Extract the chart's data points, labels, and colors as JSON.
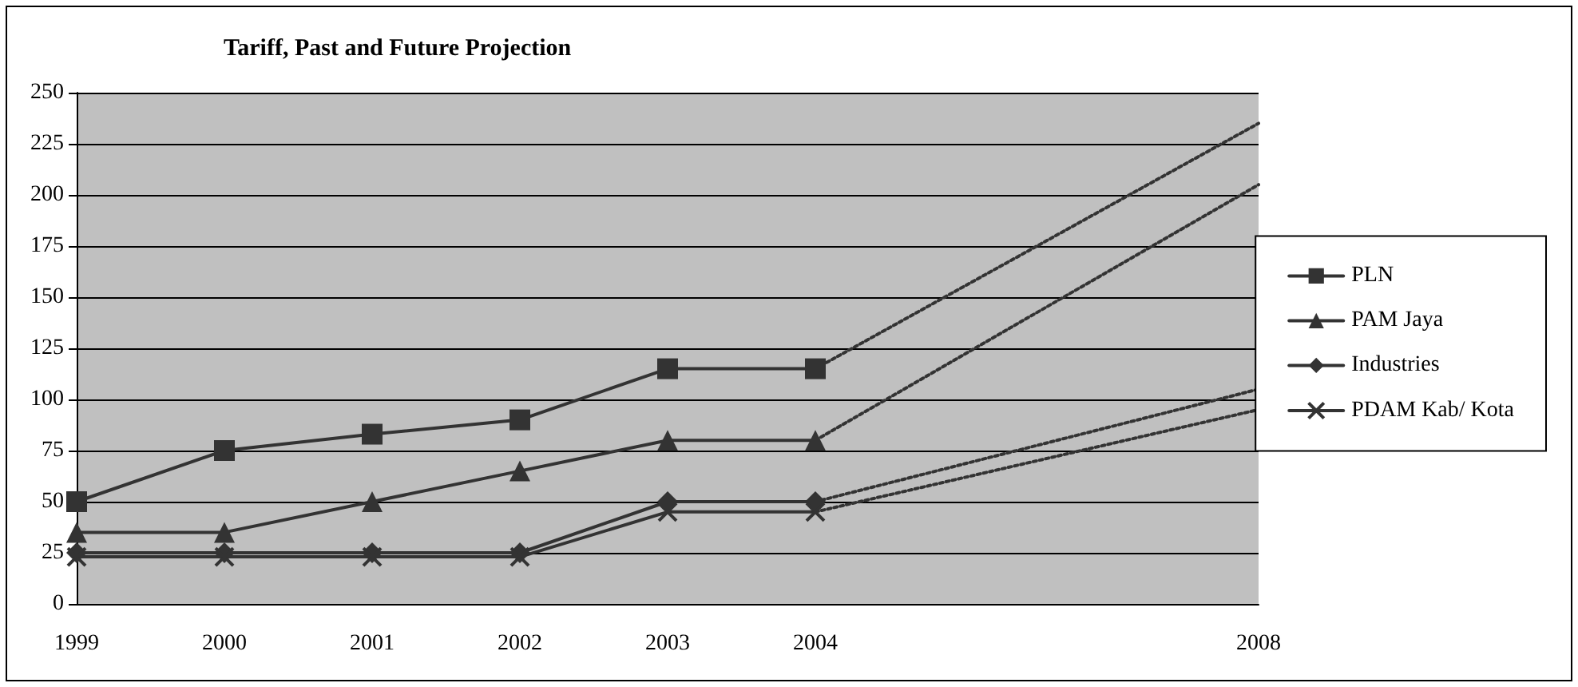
{
  "chart_data": {
    "type": "line",
    "title": "Tariff, Past and Future Projection",
    "categories": [
      "1999",
      "2000",
      "2001",
      "2002",
      "2003",
      "2004",
      null,
      null,
      "2008"
    ],
    "series": [
      {
        "name": "PLN",
        "color": "#333333",
        "marker": "square",
        "line_style": "solid",
        "values": [
          50,
          75,
          83,
          90,
          115,
          115,
          null,
          null,
          null
        ]
      },
      {
        "name": "PAM Jaya",
        "color": "#333333",
        "marker": "triangle",
        "line_style": "solid",
        "values": [
          35,
          35,
          50,
          65,
          80,
          80,
          null,
          null,
          null
        ]
      },
      {
        "name": "Industries",
        "color": "#333333",
        "marker": "diamond",
        "line_style": "solid",
        "values": [
          25,
          25,
          25,
          25,
          50,
          50,
          null,
          null,
          null
        ]
      },
      {
        "name": "PDAM Kab/ Kota",
        "color": "#333333",
        "marker": "cross",
        "line_style": "solid",
        "values": [
          23,
          23,
          23,
          23,
          45,
          45,
          null,
          null,
          null
        ]
      },
      {
        "color": "#333333",
        "marker": "none",
        "line_style": "dotted",
        "values": [
          null,
          null,
          null,
          null,
          null,
          115,
          null,
          null,
          235
        ]
      },
      {
        "color": "#333333",
        "marker": "none",
        "line_style": "dotted",
        "values": [
          null,
          null,
          null,
          null,
          null,
          80,
          null,
          null,
          205
        ]
      },
      {
        "color": "#333333",
        "marker": "none",
        "line_style": "dotted",
        "values": [
          null,
          null,
          null,
          null,
          null,
          50,
          null,
          null,
          105
        ]
      },
      {
        "color": "#333333",
        "marker": "none",
        "line_style": "dotted",
        "values": [
          null,
          null,
          null,
          null,
          null,
          45,
          null,
          null,
          95
        ]
      }
    ],
    "ylim": [
      0,
      250
    ],
    "yticks": [
      0,
      25,
      50,
      75,
      100,
      125,
      150,
      175,
      200,
      225,
      250
    ],
    "grid": "y",
    "legend": "right"
  }
}
